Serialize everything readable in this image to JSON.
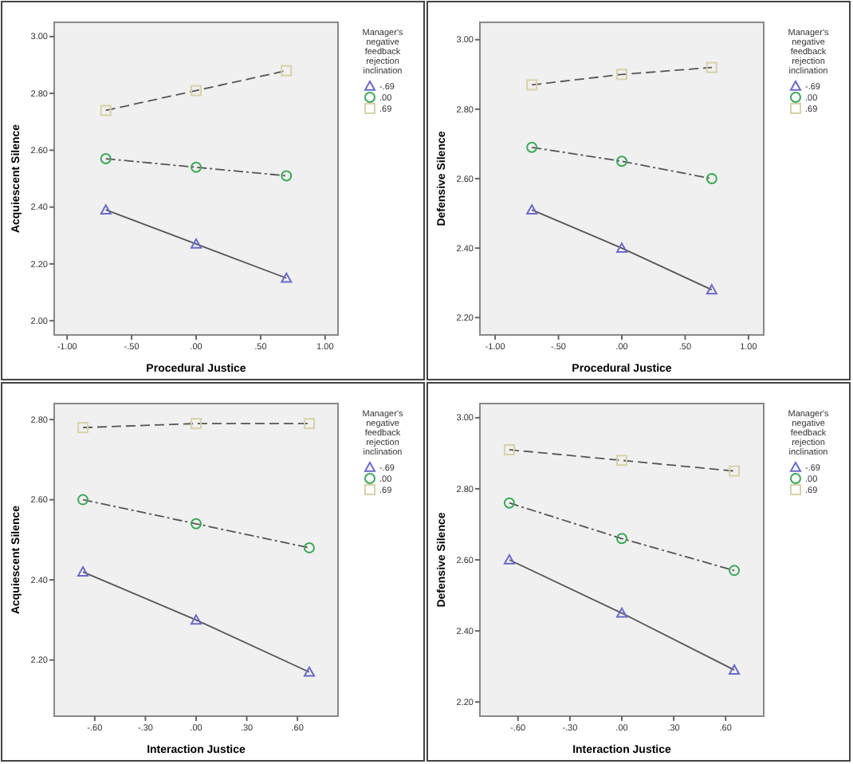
{
  "chart_data": [
    {
      "type": "line",
      "xlabel": "Procedural Justice",
      "ylabel": "Acquiescent Silence",
      "legend_title": "Manager's negative feedback rejection inclination",
      "legend": "right",
      "grid": false,
      "xlim": [
        -1.1,
        1.1
      ],
      "xticks": [
        {
          "value": -1,
          "label": "-1.00"
        },
        {
          "value": -0.5,
          "label": "-.50"
        },
        {
          "value": 0,
          "label": ".00"
        },
        {
          "value": 0.5,
          "label": ".50"
        },
        {
          "value": 1,
          "label": "1.00"
        }
      ],
      "ylim": [
        1.95,
        3.05
      ],
      "yticks": [
        {
          "value": 2,
          "label": "2.00"
        },
        {
          "value": 2.2,
          "label": "2.20"
        },
        {
          "value": 2.4,
          "label": "2.40"
        },
        {
          "value": 2.6,
          "label": "2.60"
        },
        {
          "value": 2.8,
          "label": "2.80"
        },
        {
          "value": 3,
          "label": "3.00"
        }
      ],
      "series": [
        {
          "name": "-.69",
          "color": "#6a6ac8",
          "marker": "triangle",
          "line_style": "solid",
          "x": [
            -0.7,
            0,
            0.7
          ],
          "values": [
            2.39,
            2.27,
            2.15
          ]
        },
        {
          "name": ".00",
          "color": "#3aa858",
          "marker": "circle",
          "line_style": "dotted",
          "x": [
            -0.7,
            0,
            0.7
          ],
          "values": [
            2.57,
            2.54,
            2.51
          ]
        },
        {
          "name": ".69",
          "color": "#d6d2a8",
          "marker": "square",
          "line_style": "dashed",
          "x": [
            -0.7,
            0,
            0.7
          ],
          "values": [
            2.74,
            2.81,
            2.88
          ]
        }
      ]
    },
    {
      "type": "line",
      "xlabel": "Procedural Justice",
      "ylabel": "Defensive Silence",
      "legend_title": "Manager's negative feedback rejection inclination",
      "legend": "right",
      "grid": false,
      "xlim": [
        -1.12,
        1.12
      ],
      "xticks": [
        {
          "value": -1,
          "label": "-1.00"
        },
        {
          "value": -0.5,
          "label": "-.50"
        },
        {
          "value": 0,
          "label": ".00"
        },
        {
          "value": 0.5,
          "label": ".50"
        },
        {
          "value": 1,
          "label": "1.00"
        }
      ],
      "ylim": [
        2.15,
        3.05
      ],
      "yticks": [
        {
          "value": 2.2,
          "label": "2.20"
        },
        {
          "value": 2.4,
          "label": "2.40"
        },
        {
          "value": 2.6,
          "label": "2.60"
        },
        {
          "value": 2.8,
          "label": "2.80"
        },
        {
          "value": 3,
          "label": "3.00"
        }
      ],
      "series": [
        {
          "name": "-.69",
          "color": "#6a6ac8",
          "marker": "triangle",
          "line_style": "solid",
          "x": [
            -0.71,
            0,
            0.71
          ],
          "values": [
            2.51,
            2.4,
            2.28
          ]
        },
        {
          "name": ".00",
          "color": "#3aa858",
          "marker": "circle",
          "line_style": "dotted",
          "x": [
            -0.71,
            0,
            0.71
          ],
          "values": [
            2.69,
            2.65,
            2.6
          ]
        },
        {
          "name": ".69",
          "color": "#d6d2a8",
          "marker": "square",
          "line_style": "dashed",
          "x": [
            -0.71,
            0,
            0.71
          ],
          "values": [
            2.87,
            2.9,
            2.92
          ]
        }
      ]
    },
    {
      "type": "line",
      "xlabel": "Interaction Justice",
      "ylabel": "Acquiescent Silence",
      "legend_title": "Manager's negative feedback rejection inclination",
      "legend": "right",
      "grid": false,
      "xlim": [
        -0.84,
        0.84
      ],
      "xticks": [
        {
          "value": -0.6,
          "label": "-.60"
        },
        {
          "value": -0.3,
          "label": "-.30"
        },
        {
          "value": 0,
          "label": ".00"
        },
        {
          "value": 0.3,
          "label": ".30"
        },
        {
          "value": 0.6,
          "label": ".60"
        }
      ],
      "ylim": [
        2.06,
        2.84
      ],
      "yticks": [
        {
          "value": 2.2,
          "label": "2.20"
        },
        {
          "value": 2.4,
          "label": "2.40"
        },
        {
          "value": 2.6,
          "label": "2.60"
        },
        {
          "value": 2.8,
          "label": "2.80"
        }
      ],
      "series": [
        {
          "name": "-.69",
          "color": "#6a6ac8",
          "marker": "triangle",
          "line_style": "solid",
          "x": [
            -0.67,
            0,
            0.67
          ],
          "values": [
            2.42,
            2.3,
            2.17
          ]
        },
        {
          "name": ".00",
          "color": "#3aa858",
          "marker": "circle",
          "line_style": "dotted",
          "x": [
            -0.67,
            0,
            0.67
          ],
          "values": [
            2.6,
            2.54,
            2.48
          ]
        },
        {
          "name": ".69",
          "color": "#d6d2a8",
          "marker": "square",
          "line_style": "dashed",
          "x": [
            -0.67,
            0,
            0.67
          ],
          "values": [
            2.78,
            2.79,
            2.79
          ]
        }
      ]
    },
    {
      "type": "line",
      "xlabel": "Interaction Justice",
      "ylabel": "Defensive Silence",
      "legend_title": "Manager's negative feedback rejection inclination",
      "legend": "right",
      "grid": false,
      "xlim": [
        -0.82,
        0.82
      ],
      "xticks": [
        {
          "value": -0.6,
          "label": "-.60"
        },
        {
          "value": -0.3,
          "label": "-.30"
        },
        {
          "value": 0,
          "label": ".00"
        },
        {
          "value": 0.3,
          "label": ".30"
        },
        {
          "value": 0.6,
          "label": ".60"
        }
      ],
      "ylim": [
        2.16,
        3.04
      ],
      "yticks": [
        {
          "value": 2.2,
          "label": "2.20"
        },
        {
          "value": 2.4,
          "label": "2.40"
        },
        {
          "value": 2.6,
          "label": "2.60"
        },
        {
          "value": 2.8,
          "label": "2.80"
        },
        {
          "value": 3,
          "label": "3.00"
        }
      ],
      "series": [
        {
          "name": "-.69",
          "color": "#6a6ac8",
          "marker": "triangle",
          "line_style": "solid",
          "x": [
            -0.65,
            0,
            0.65
          ],
          "values": [
            2.6,
            2.45,
            2.29
          ]
        },
        {
          "name": ".00",
          "color": "#3aa858",
          "marker": "circle",
          "line_style": "dotted",
          "x": [
            -0.65,
            0,
            0.65
          ],
          "values": [
            2.76,
            2.66,
            2.57
          ]
        },
        {
          "name": ".69",
          "color": "#d6d2a8",
          "marker": "square",
          "line_style": "dashed",
          "x": [
            -0.65,
            0,
            0.65
          ],
          "values": [
            2.91,
            2.88,
            2.85
          ]
        }
      ]
    }
  ]
}
